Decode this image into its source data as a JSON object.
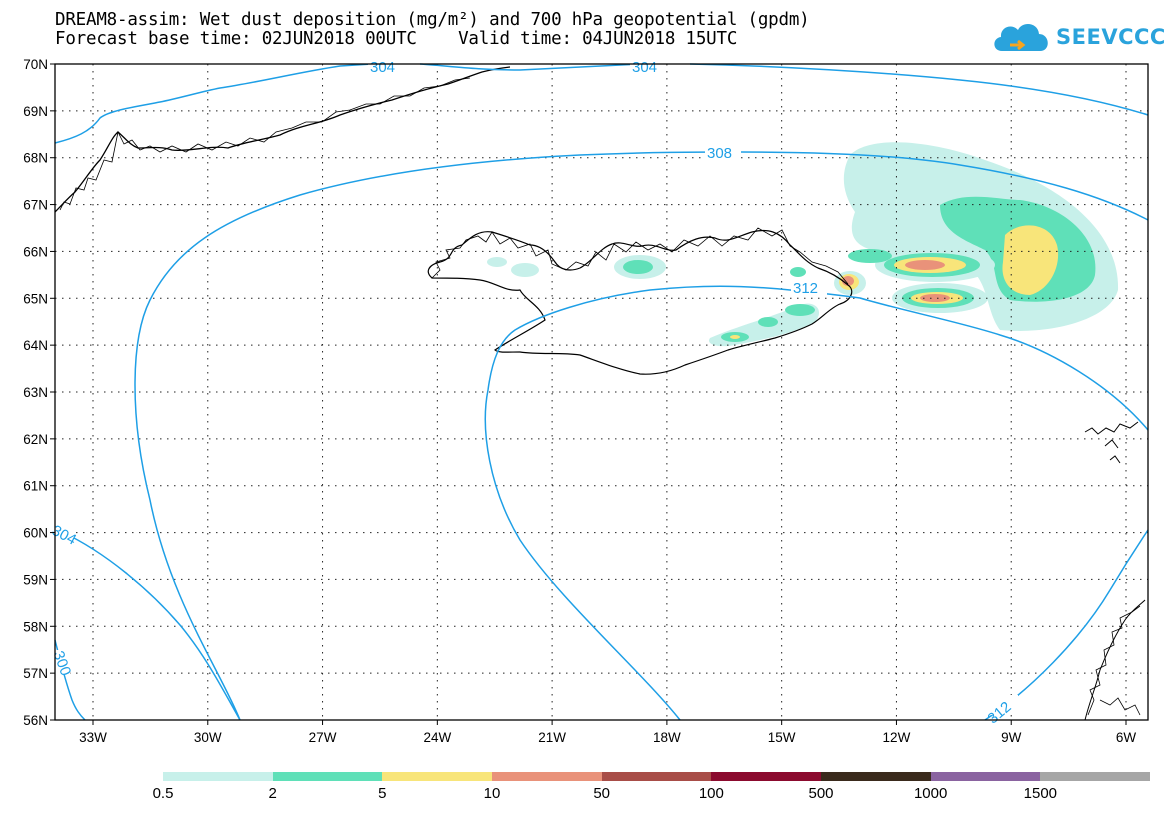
{
  "title": {
    "line1": "DREAM8-assim: Wet dust deposition (mg/m²) and 700 hPa geopotential (gpdm)",
    "line2": "Forecast base time: 02JUN2018 00UTC    Valid time: 04JUN2018 15UTC"
  },
  "logo": {
    "text": "SEEVCCC",
    "icon": "cloud-icon",
    "color": "#2aa3dc"
  },
  "map": {
    "lon_labels": [
      "33W",
      "30W",
      "27W",
      "24W",
      "21W",
      "18W",
      "15W",
      "12W",
      "9W",
      "6W"
    ],
    "lat_labels": [
      "70N",
      "69N",
      "68N",
      "67N",
      "66N",
      "65N",
      "64N",
      "63N",
      "62N",
      "61N",
      "60N",
      "59N",
      "58N",
      "57N",
      "56N"
    ],
    "contour_color": "#1e9fe6",
    "contour_labels": [
      "304",
      "304",
      "308",
      "312",
      "304",
      "300",
      "312"
    ],
    "region": "Iceland / North Atlantic"
  },
  "colorbar": {
    "labels": [
      "0.5",
      "2",
      "5",
      "10",
      "50",
      "100",
      "500",
      "1000",
      "1500"
    ],
    "colors": [
      "#c7f0ea",
      "#5fe0b8",
      "#f8e57a",
      "#e9927a",
      "#a84d47",
      "#8b0a2e",
      "#3a2a1c",
      "#8a63a0",
      "#a6a6a6"
    ]
  }
}
